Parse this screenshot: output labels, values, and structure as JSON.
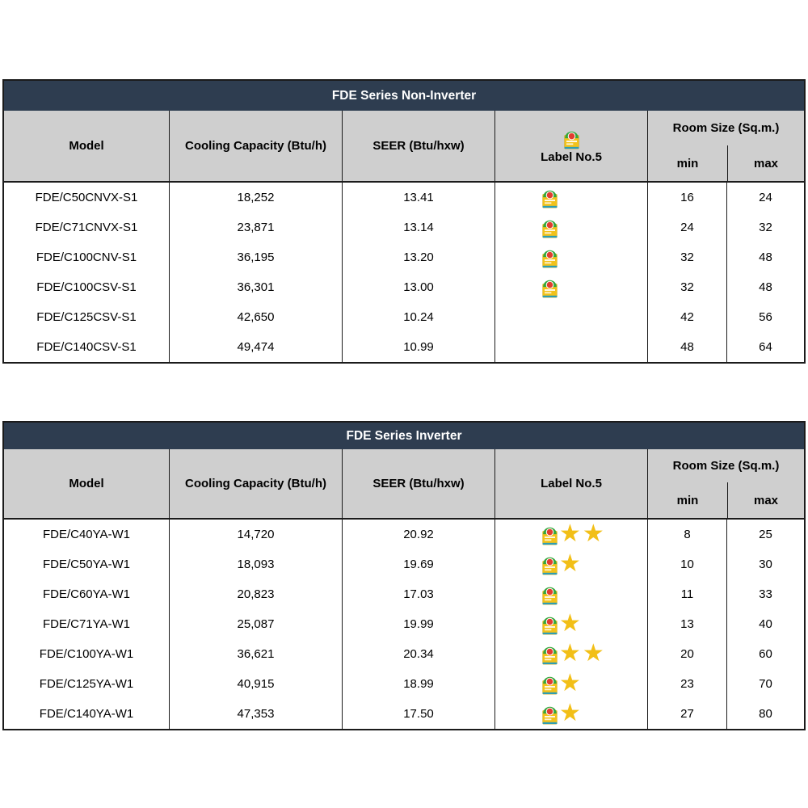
{
  "colors": {
    "title_bar": "#2e3d50",
    "title_text": "#ffffff",
    "header_bg": "#cfcfcf",
    "border": "#1b1b1b",
    "star": "#f2bf17",
    "label_yellow": "#f2c21a",
    "label_green": "#35a63c",
    "label_red": "#e23d2e",
    "label_teal": "#2d9db4"
  },
  "columns": {
    "model": "Model",
    "cooling": "Cooling Capacity (Btu/h)",
    "seer": "SEER (Btu/hxw)",
    "label": "Label No.5",
    "room": "Room Size (Sq.m.)",
    "min": "min",
    "max": "max"
  },
  "icons": {
    "label_header_icon": "energy-label-no5-icon",
    "star_icon": "star-icon"
  },
  "tables": [
    {
      "title": "FDE Series Non-Inverter",
      "rows": [
        {
          "model": "FDE/C50CNVX-S1",
          "cooling": "18,252",
          "seer": "13.41",
          "label5": true,
          "stars": 0,
          "min": "16",
          "max": "24"
        },
        {
          "model": "FDE/C71CNVX-S1",
          "cooling": "23,871",
          "seer": "13.14",
          "label5": true,
          "stars": 0,
          "min": "24",
          "max": "32"
        },
        {
          "model": "FDE/C100CNV-S1",
          "cooling": "36,195",
          "seer": "13.20",
          "label5": true,
          "stars": 0,
          "min": "32",
          "max": "48"
        },
        {
          "model": "FDE/C100CSV-S1",
          "cooling": "36,301",
          "seer": "13.00",
          "label5": true,
          "stars": 0,
          "min": "32",
          "max": "48"
        },
        {
          "model": "FDE/C125CSV-S1",
          "cooling": "42,650",
          "seer": "10.24",
          "label5": false,
          "stars": 0,
          "min": "42",
          "max": "56"
        },
        {
          "model": "FDE/C140CSV-S1",
          "cooling": "49,474",
          "seer": "10.99",
          "label5": false,
          "stars": 0,
          "min": "48",
          "max": "64"
        }
      ]
    },
    {
      "title": "FDE Series Inverter",
      "rows": [
        {
          "model": "FDE/C40YA-W1",
          "cooling": "14,720",
          "seer": "20.92",
          "label5": true,
          "stars": 2,
          "min": "8",
          "max": "25"
        },
        {
          "model": "FDE/C50YA-W1",
          "cooling": "18,093",
          "seer": "19.69",
          "label5": true,
          "stars": 1,
          "min": "10",
          "max": "30"
        },
        {
          "model": "FDE/C60YA-W1",
          "cooling": "20,823",
          "seer": "17.03",
          "label5": true,
          "stars": 0,
          "min": "11",
          "max": "33"
        },
        {
          "model": "FDE/C71YA-W1",
          "cooling": "25,087",
          "seer": "19.99",
          "label5": true,
          "stars": 1,
          "min": "13",
          "max": "40"
        },
        {
          "model": "FDE/C100YA-W1",
          "cooling": "36,621",
          "seer": "20.34",
          "label5": true,
          "stars": 2,
          "min": "20",
          "max": "60"
        },
        {
          "model": "FDE/C125YA-W1",
          "cooling": "40,915",
          "seer": "18.99",
          "label5": true,
          "stars": 1,
          "min": "23",
          "max": "70"
        },
        {
          "model": "FDE/C140YA-W1",
          "cooling": "47,353",
          "seer": "17.50",
          "label5": true,
          "stars": 1,
          "min": "27",
          "max": "80"
        }
      ]
    }
  ]
}
